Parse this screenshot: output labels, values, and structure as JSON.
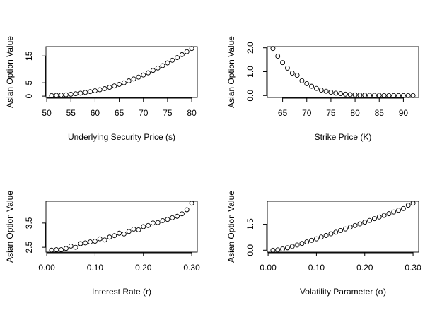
{
  "chart_data": [
    {
      "type": "scatter",
      "xlabel": "Underlying Security Price (s)",
      "ylabel": "Asian Option Value",
      "x": [
        51,
        52,
        53,
        54,
        55,
        56,
        57,
        58,
        59,
        60,
        61,
        62,
        63,
        64,
        65,
        66,
        67,
        68,
        69,
        70,
        71,
        72,
        73,
        74,
        75,
        76,
        77,
        78,
        79,
        80
      ],
      "values": [
        0.2,
        0.3,
        0.4,
        0.5,
        0.7,
        0.9,
        1.1,
        1.4,
        1.7,
        2.0,
        2.4,
        2.8,
        3.3,
        3.8,
        4.4,
        5.0,
        5.7,
        6.4,
        7.1,
        7.9,
        8.7,
        9.6,
        10.5,
        11.4,
        12.4,
        13.4,
        14.4,
        15.5,
        16.6,
        17.8
      ],
      "xlim": [
        49.84,
        81.16
      ],
      "ylim": [
        -0.5,
        18.5
      ],
      "xticks": [
        50,
        55,
        60,
        65,
        70,
        75,
        80
      ],
      "yticks": [
        0,
        5,
        15
      ]
    },
    {
      "type": "scatter",
      "xlabel": "Strike Price (K)",
      "ylabel": "Asian Option Value",
      "x": [
        63,
        64,
        65,
        66,
        67,
        68,
        69,
        70,
        71,
        72,
        73,
        74,
        75,
        76,
        77,
        78,
        79,
        80,
        81,
        82,
        83,
        84,
        85,
        86,
        87,
        88,
        89,
        90,
        91,
        92
      ],
      "values": [
        1.97,
        1.65,
        1.38,
        1.15,
        0.94,
        0.85,
        0.62,
        0.5,
        0.39,
        0.3,
        0.23,
        0.18,
        0.14,
        0.1,
        0.08,
        0.06,
        0.04,
        0.03,
        0.02,
        0.02,
        0.01,
        0.01,
        0.01,
        0,
        0,
        0,
        0,
        0,
        0,
        0
      ],
      "xlim": [
        61.84,
        93.16
      ],
      "ylim": [
        -0.08,
        2.05
      ],
      "xticks": [
        65,
        70,
        75,
        80,
        85,
        90
      ],
      "yticks": [
        {
          "value": 0,
          "label": "0.0"
        },
        {
          "value": 1,
          "label": "1.0"
        },
        {
          "value": 2,
          "label": "2.0"
        }
      ]
    },
    {
      "type": "scatter",
      "xlabel": "Interest Rate (r)",
      "ylabel": "Asian Option Value",
      "x": [
        0.01,
        0.02,
        0.03,
        0.04,
        0.05,
        0.06,
        0.07,
        0.08,
        0.09,
        0.1,
        0.11,
        0.12,
        0.13,
        0.14,
        0.15,
        0.16,
        0.17,
        0.18,
        0.19,
        0.2,
        0.21,
        0.22,
        0.23,
        0.24,
        0.25,
        0.26,
        0.27,
        0.28,
        0.29,
        0.3
      ],
      "values": [
        2.38,
        2.4,
        2.4,
        2.45,
        2.55,
        2.5,
        2.65,
        2.68,
        2.72,
        2.75,
        2.85,
        2.8,
        2.92,
        2.98,
        3.08,
        3.05,
        3.15,
        3.25,
        3.22,
        3.35,
        3.4,
        3.5,
        3.52,
        3.6,
        3.65,
        3.72,
        3.78,
        3.88,
        4.05,
        4.32
      ],
      "xlim": [
        -0.0016,
        0.3116
      ],
      "ylim": [
        2.3,
        4.4
      ],
      "xticks": [
        {
          "value": 0,
          "label": "0.00"
        },
        {
          "value": 0.1,
          "label": "0.10"
        },
        {
          "value": 0.2,
          "label": "0.20"
        },
        {
          "value": 0.3,
          "label": "0.30"
        }
      ],
      "yticks": [
        2.5,
        3.5
      ]
    },
    {
      "type": "scatter",
      "xlabel": "Volatility Parameter (σ)",
      "ylabel": "Asian Option Value",
      "x": [
        0.01,
        0.02,
        0.03,
        0.04,
        0.05,
        0.06,
        0.07,
        0.08,
        0.09,
        0.1,
        0.11,
        0.12,
        0.13,
        0.14,
        0.15,
        0.16,
        0.17,
        0.18,
        0.19,
        0.2,
        0.21,
        0.22,
        0.23,
        0.24,
        0.25,
        0.26,
        0.27,
        0.28,
        0.29,
        0.3
      ],
      "values": [
        0,
        0.02,
        0.07,
        0.14,
        0.22,
        0.3,
        0.39,
        0.48,
        0.57,
        0.66,
        0.76,
        0.85,
        0.95,
        1.04,
        1.14,
        1.23,
        1.33,
        1.43,
        1.52,
        1.62,
        1.72,
        1.82,
        1.92,
        2.01,
        2.11,
        2.21,
        2.31,
        2.41,
        2.6,
        2.72
      ],
      "xlim": [
        -0.0016,
        0.3116
      ],
      "ylim": [
        -0.11,
        2.83
      ],
      "xticks": [
        {
          "value": 0,
          "label": "0.00"
        },
        {
          "value": 0.1,
          "label": "0.10"
        },
        {
          "value": 0.2,
          "label": "0.20"
        },
        {
          "value": 0.3,
          "label": "0.30"
        }
      ],
      "yticks": [
        {
          "value": 0,
          "label": "0.0"
        },
        {
          "value": 1.5,
          "label": "1.5"
        }
      ]
    }
  ]
}
